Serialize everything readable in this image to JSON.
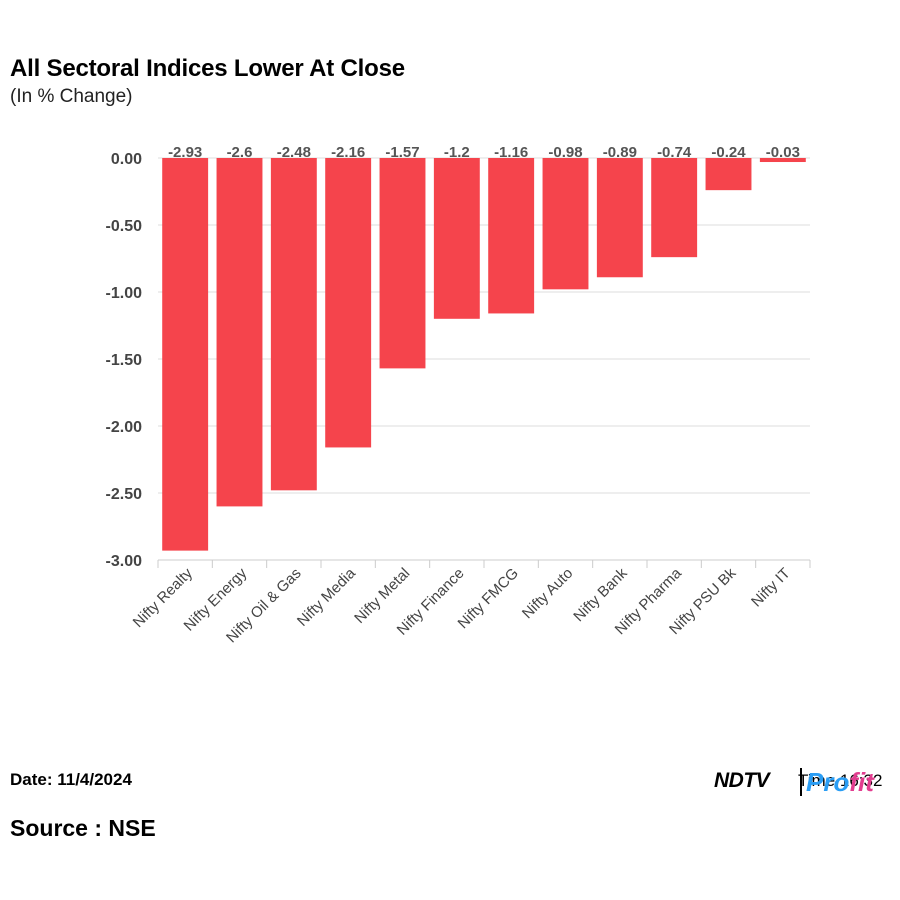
{
  "header": {
    "title": "All Sectoral Indices Lower At Close",
    "subtitle": "(In % Change)"
  },
  "footer": {
    "date": "Date: 11/4/2024",
    "source": "Source : NSE",
    "time_label": "Time 16:32",
    "logo_ndtv": "NDTV",
    "logo_profit_a": "Pro",
    "logo_profit_b": "fit"
  },
  "colors": {
    "bar": "#f5444c",
    "grid": "#dcdcdc",
    "axis_text": "#444444",
    "label_text": "#555555"
  },
  "chart_data": {
    "type": "bar",
    "title": "All Sectoral Indices Lower At Close",
    "subtitle": "(In % Change)",
    "xlabel": "",
    "ylabel": "",
    "categories": [
      "Nifty Realty",
      "Nifty Energy",
      "Nifty Oil & Gas",
      "Nifty Media",
      "Nifty Metal",
      "Nifty Finance",
      "Nifty FMCG",
      "Nifty Auto",
      "Nifty Bank",
      "Nifty Pharma",
      "Nifty PSU Bk",
      "Nifty IT"
    ],
    "values": [
      -2.93,
      -2.6,
      -2.48,
      -2.16,
      -1.57,
      -1.2,
      -1.16,
      -0.98,
      -0.89,
      -0.74,
      -0.24,
      -0.03
    ],
    "value_labels": [
      "-2.93",
      "-2.6",
      "-2.48",
      "-2.16",
      "-1.57",
      "-1.2",
      "-1.16",
      "-0.98",
      "-0.89",
      "-0.74",
      "-0.24",
      "-0.03"
    ],
    "yticks": [
      0,
      -0.5,
      -1,
      -1.5,
      -2,
      -2.5,
      -3
    ],
    "ytick_labels": [
      "0.00",
      "-0.50",
      "-1.00",
      "-1.50",
      "-2.00",
      "-2.50",
      "-3.00"
    ],
    "ylim": [
      -3,
      0
    ],
    "grid": true,
    "legend": "none"
  }
}
